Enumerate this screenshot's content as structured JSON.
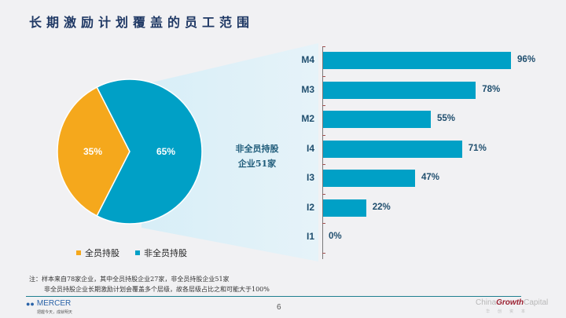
{
  "title": "长期激励计划覆盖的员工范围",
  "pie": {
    "slices": [
      {
        "label": "全员持股",
        "value": 35,
        "display": "35%",
        "color": "#f5a81c"
      },
      {
        "label": "非全员持股",
        "value": 65,
        "display": "65%",
        "color": "#00a0c6"
      }
    ]
  },
  "callout": {
    "line1": "非全员持股",
    "line2": "企业51家"
  },
  "legend": [
    {
      "label": "全员持股",
      "color": "#f5a81c"
    },
    {
      "label": "非全员持股",
      "color": "#00a0c6"
    }
  ],
  "bars": {
    "color": "#00a0c6",
    "items": [
      {
        "category": "M4",
        "value": 96,
        "display": "96%"
      },
      {
        "category": "M3",
        "value": 78,
        "display": "78%"
      },
      {
        "category": "M2",
        "value": 55,
        "display": "55%"
      },
      {
        "category": "I4",
        "value": 71,
        "display": "71%"
      },
      {
        "category": "I3",
        "value": 47,
        "display": "47%"
      },
      {
        "category": "I2",
        "value": 22,
        "display": "22%"
      },
      {
        "category": "I1",
        "value": 0,
        "display": "0%"
      }
    ]
  },
  "footer": {
    "note_line1": "注：样本来自78家企业，其中全员持股企业27家，非全员持股企业51家",
    "note_line2": "非全员持股企业长期激励计划会覆盖多个层级，故各层级占比之和可能大于100%",
    "brand_left": "MERCER",
    "brand_left_tagline": "把握今天，成就明天",
    "page_number": "6",
    "brand_right_a": "China",
    "brand_right_b": "Growth",
    "brand_right_c": "Capital",
    "brand_right_tagline": "华创资本"
  },
  "chart_data": [
    {
      "type": "pie",
      "title": "长期激励计划覆盖的员工范围",
      "categories": [
        "全员持股",
        "非全员持股"
      ],
      "values": [
        35,
        65
      ],
      "unit": "%",
      "legend_position": "bottom"
    },
    {
      "type": "bar",
      "orientation": "horizontal",
      "title": "非全员持股企业51家",
      "categories": [
        "M4",
        "M3",
        "M2",
        "I4",
        "I3",
        "I2",
        "I1"
      ],
      "values": [
        96,
        78,
        55,
        71,
        47,
        22,
        0
      ],
      "unit": "%",
      "xlim": [
        0,
        100
      ],
      "grid": false
    }
  ]
}
